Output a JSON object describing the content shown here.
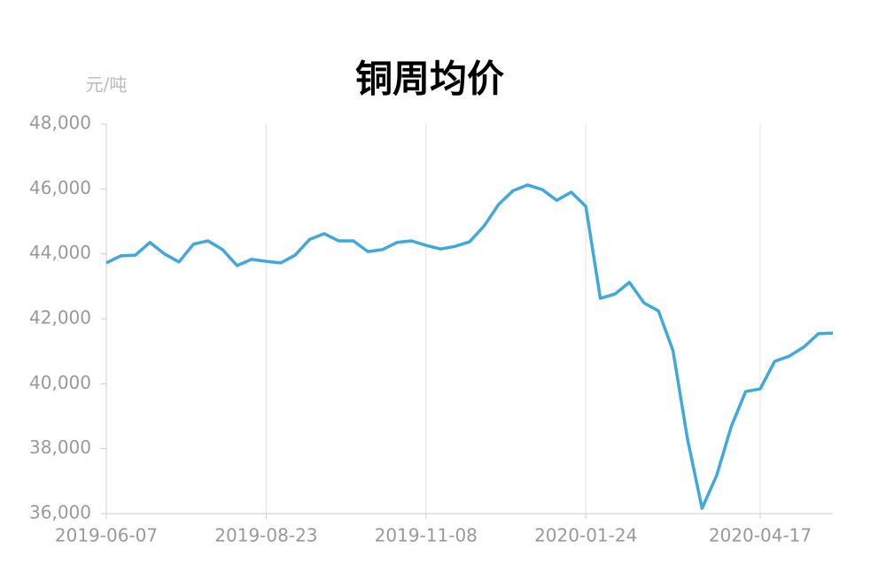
{
  "chart_data": {
    "type": "line",
    "title": "铜周均价",
    "y_axis_label": "元/吨",
    "x": [
      "2019-06-07",
      "2019-06-14",
      "2019-06-21",
      "2019-06-28",
      "2019-07-05",
      "2019-07-12",
      "2019-07-19",
      "2019-07-26",
      "2019-08-02",
      "2019-08-09",
      "2019-08-16",
      "2019-08-23",
      "2019-08-30",
      "2019-09-06",
      "2019-09-13",
      "2019-09-20",
      "2019-09-27",
      "2019-10-04",
      "2019-10-11",
      "2019-10-18",
      "2019-10-25",
      "2019-11-01",
      "2019-11-08",
      "2019-11-15",
      "2019-11-22",
      "2019-11-29",
      "2019-12-06",
      "2019-12-13",
      "2019-12-20",
      "2019-12-27",
      "2020-01-03",
      "2020-01-10",
      "2020-01-17",
      "2020-01-24",
      "2020-01-31",
      "2020-02-07",
      "2020-02-14",
      "2020-02-21",
      "2020-02-28",
      "2020-03-06",
      "2020-03-13",
      "2020-03-20",
      "2020-03-27",
      "2020-04-03",
      "2020-04-10",
      "2020-04-17",
      "2020-04-24",
      "2020-05-01",
      "2020-05-08",
      "2020-05-15",
      "2020-05-22"
    ],
    "series": [
      {
        "name": "铜周均价",
        "color": "#3fa9dd",
        "values": [
          43720,
          43940,
          43960,
          44350,
          44000,
          43750,
          44300,
          44400,
          44130,
          43640,
          43830,
          43770,
          43720,
          43960,
          44450,
          44620,
          44400,
          44400,
          44070,
          44130,
          44350,
          44400,
          44260,
          44150,
          44230,
          44370,
          44860,
          45520,
          45950,
          46120,
          45980,
          45650,
          45900,
          45460,
          42630,
          42760,
          43120,
          42490,
          42240,
          41020,
          38290,
          36160,
          37170,
          38670,
          39760,
          39840,
          40690,
          40850,
          41130,
          41540,
          41560
        ]
      }
    ],
    "xlim": [
      "2019-06-07",
      "2020-05-22"
    ],
    "xticks": [
      "2019-06-07",
      "2019-08-23",
      "2019-11-08",
      "2020-01-24",
      "2020-04-17"
    ],
    "ylim": [
      36000,
      48000
    ],
    "yticks": [
      {
        "value": 36000,
        "label": "36,000"
      },
      {
        "value": 38000,
        "label": "38,000"
      },
      {
        "value": 40000,
        "label": "40,000"
      },
      {
        "value": 42000,
        "label": "42,000"
      },
      {
        "value": 44000,
        "label": "44,000"
      },
      {
        "value": 46000,
        "label": "46,000"
      },
      {
        "value": 48000,
        "label": "48,000"
      }
    ],
    "grid": "x"
  }
}
